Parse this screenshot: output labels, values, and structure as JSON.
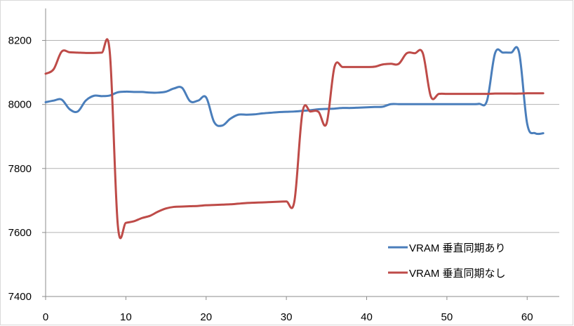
{
  "chart_data": {
    "type": "line",
    "title": "",
    "xlabel": "",
    "ylabel": "",
    "xlim": [
      0,
      64
    ],
    "ylim": [
      7400,
      8300
    ],
    "x_ticks": [
      0,
      10,
      20,
      30,
      40,
      50,
      60
    ],
    "y_ticks": [
      7400,
      7600,
      7800,
      8000,
      8200
    ],
    "grid": "horizontal",
    "legend_position": "bottom-right",
    "series": [
      {
        "name": "VRAM 垂直同期あり",
        "color": "#4a7ebb",
        "points": [
          [
            0,
            8007
          ],
          [
            1,
            8012
          ],
          [
            2,
            8015
          ],
          [
            3,
            7985
          ],
          [
            4,
            7978
          ],
          [
            5,
            8012
          ],
          [
            6,
            8027
          ],
          [
            7,
            8026
          ],
          [
            8,
            8028
          ],
          [
            9,
            8038
          ],
          [
            10,
            8040
          ],
          [
            11,
            8039
          ],
          [
            12,
            8039
          ],
          [
            13,
            8037
          ],
          [
            14,
            8037
          ],
          [
            15,
            8040
          ],
          [
            16,
            8050
          ],
          [
            17,
            8052
          ],
          [
            18,
            8010
          ],
          [
            19,
            8012
          ],
          [
            20,
            8022
          ],
          [
            21,
            7945
          ],
          [
            22,
            7934
          ],
          [
            23,
            7955
          ],
          [
            24,
            7968
          ],
          [
            25,
            7968
          ],
          [
            26,
            7969
          ],
          [
            27,
            7972
          ],
          [
            28,
            7974
          ],
          [
            29,
            7976
          ],
          [
            30,
            7977
          ],
          [
            31,
            7978
          ],
          [
            32,
            7980
          ],
          [
            33,
            7982
          ],
          [
            34,
            7985
          ],
          [
            35,
            7986
          ],
          [
            36,
            7987
          ],
          [
            37,
            7989
          ],
          [
            38,
            7989
          ],
          [
            39,
            7990
          ],
          [
            40,
            7991
          ],
          [
            41,
            7992
          ],
          [
            42,
            7993
          ],
          [
            43,
            8001
          ],
          [
            44,
            8001
          ],
          [
            45,
            8001
          ],
          [
            46,
            8001
          ],
          [
            47,
            8001
          ],
          [
            48,
            8001
          ],
          [
            49,
            8001
          ],
          [
            50,
            8001
          ],
          [
            51,
            8001
          ],
          [
            52,
            8001
          ],
          [
            53,
            8001
          ],
          [
            54,
            8002
          ],
          [
            55,
            8012
          ],
          [
            56,
            8160
          ],
          [
            57,
            8162
          ],
          [
            58,
            8162
          ],
          [
            59,
            8162
          ],
          [
            60,
            7940
          ],
          [
            61,
            7910
          ],
          [
            62,
            7910
          ]
        ]
      },
      {
        "name": "VRAM 垂直同期なし",
        "color": "#be4b48",
        "points": [
          [
            0,
            8096
          ],
          [
            1,
            8110
          ],
          [
            2,
            8165
          ],
          [
            3,
            8163
          ],
          [
            4,
            8162
          ],
          [
            5,
            8161
          ],
          [
            6,
            8161
          ],
          [
            7,
            8162
          ],
          [
            8,
            8162
          ],
          [
            9,
            7622
          ],
          [
            10,
            7630
          ],
          [
            11,
            7635
          ],
          [
            12,
            7645
          ],
          [
            13,
            7652
          ],
          [
            14,
            7665
          ],
          [
            15,
            7675
          ],
          [
            16,
            7680
          ],
          [
            17,
            7681
          ],
          [
            18,
            7682
          ],
          [
            19,
            7683
          ],
          [
            20,
            7685
          ],
          [
            21,
            7686
          ],
          [
            22,
            7687
          ],
          [
            23,
            7688
          ],
          [
            24,
            7690
          ],
          [
            25,
            7692
          ],
          [
            26,
            7693
          ],
          [
            27,
            7694
          ],
          [
            28,
            7695
          ],
          [
            29,
            7696
          ],
          [
            30,
            7697
          ],
          [
            31,
            7698
          ],
          [
            32,
            7975
          ],
          [
            33,
            7978
          ],
          [
            34,
            7977
          ],
          [
            35,
            7940
          ],
          [
            36,
            8118
          ],
          [
            37,
            8117
          ],
          [
            38,
            8117
          ],
          [
            39,
            8117
          ],
          [
            40,
            8117
          ],
          [
            41,
            8118
          ],
          [
            42,
            8125
          ],
          [
            43,
            8127
          ],
          [
            44,
            8127
          ],
          [
            45,
            8160
          ],
          [
            46,
            8160
          ],
          [
            47,
            8160
          ],
          [
            48,
            8025
          ],
          [
            49,
            8033
          ],
          [
            50,
            8033
          ],
          [
            51,
            8033
          ],
          [
            52,
            8033
          ],
          [
            53,
            8033
          ],
          [
            54,
            8033
          ],
          [
            55,
            8033
          ],
          [
            56,
            8034
          ],
          [
            57,
            8034
          ],
          [
            58,
            8034
          ],
          [
            59,
            8034
          ],
          [
            60,
            8035
          ],
          [
            61,
            8035
          ],
          [
            62,
            8035
          ]
        ]
      }
    ]
  }
}
